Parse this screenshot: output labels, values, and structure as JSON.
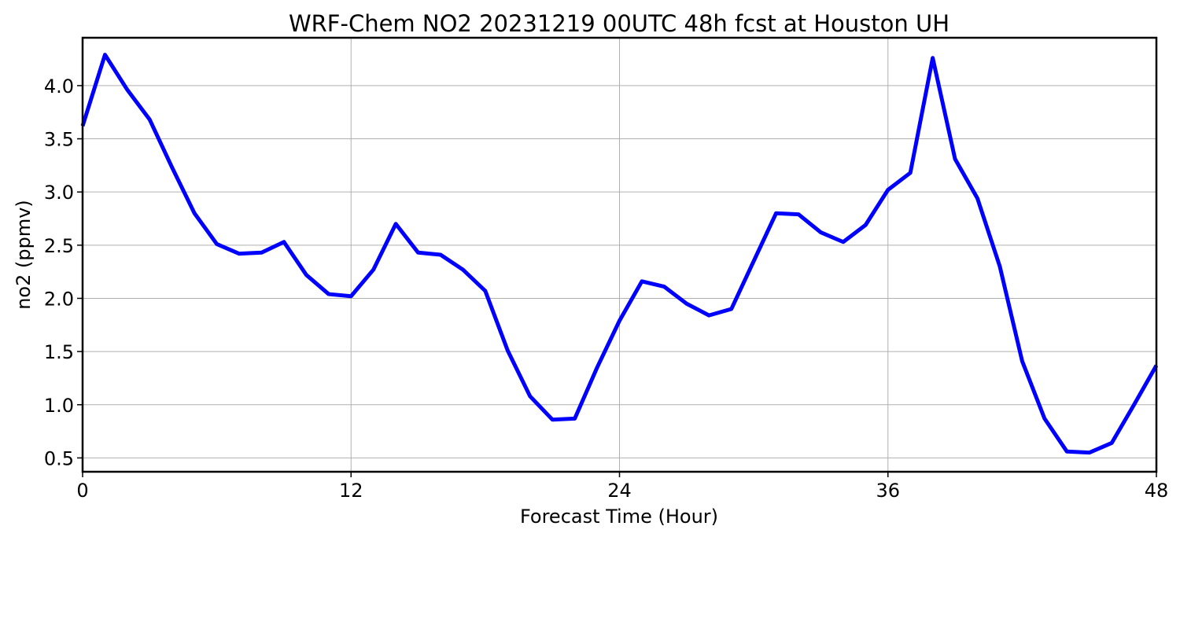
{
  "chart_data": {
    "type": "line",
    "title": "WRF-Chem NO2  20231219 00UTC 48h fcst at Houston UH",
    "xlabel": "Forecast Time (Hour)",
    "ylabel": "no2  (ppmv)",
    "xlim": [
      0,
      48
    ],
    "ylim": [
      0.37,
      4.45
    ],
    "xticks": [
      0,
      12,
      24,
      36,
      48
    ],
    "yticks": [
      0.5,
      1.0,
      1.5,
      2.0,
      2.5,
      3.0,
      3.5,
      4.0
    ],
    "xtick_labels": [
      "0",
      "12",
      "24",
      "36",
      "48"
    ],
    "ytick_labels": [
      "0.5",
      "1.0",
      "1.5",
      "2.0",
      "2.5",
      "3.0",
      "3.5",
      "4.0"
    ],
    "grid": true,
    "legend": "none",
    "series": [
      {
        "color": "#0000ff",
        "x": [
          0,
          1,
          2,
          3,
          4,
          5,
          6,
          7,
          8,
          9,
          10,
          11,
          12,
          13,
          14,
          15,
          16,
          17,
          18,
          19,
          20,
          21,
          22,
          23,
          24,
          25,
          26,
          27,
          28,
          29,
          30,
          31,
          32,
          33,
          34,
          35,
          36,
          37,
          38,
          39,
          40,
          41,
          42,
          43,
          44,
          45,
          46,
          47,
          48
        ],
        "values": [
          3.62,
          4.29,
          3.96,
          3.68,
          3.23,
          2.8,
          2.51,
          2.42,
          2.43,
          2.53,
          2.22,
          2.04,
          2.02,
          2.27,
          2.7,
          2.43,
          2.41,
          2.27,
          2.07,
          1.51,
          1.08,
          0.86,
          0.87,
          1.35,
          1.79,
          2.16,
          2.11,
          1.95,
          1.84,
          1.9,
          2.35,
          2.8,
          2.79,
          2.62,
          2.53,
          2.69,
          3.02,
          3.18,
          4.26,
          3.31,
          2.94,
          2.3,
          1.41,
          0.87,
          0.56,
          0.55,
          0.64,
          1.0,
          1.37
        ]
      }
    ]
  }
}
